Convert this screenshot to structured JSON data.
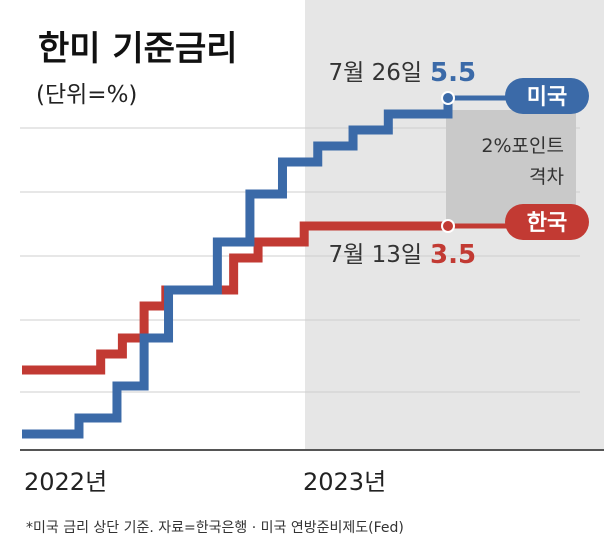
{
  "chart_data": {
    "type": "line",
    "title": "한미 기준금리",
    "subtitle": "(단위=%)",
    "note": "*미국 금리 상단 기준. 자료=한국은행 · 미국 연방준비제도(Fed)",
    "x_labels": [
      "2022년",
      "2023년"
    ],
    "ylim": [
      0,
      6
    ],
    "xlim": [
      2022.0,
      2023.8
    ],
    "series": [
      {
        "name": "미국",
        "color": "#3b6aa8",
        "x": [
          2022.0,
          2022.21,
          2022.35,
          2022.45,
          2022.54,
          2022.72,
          2022.84,
          2022.96,
          2023.09,
          2023.22,
          2023.35,
          2023.57
        ],
        "y": [
          0.25,
          0.5,
          1.0,
          1.75,
          2.5,
          3.25,
          4.0,
          4.5,
          4.75,
          5.0,
          5.25,
          5.5
        ]
      },
      {
        "name": "한국",
        "color": "#c23a33",
        "x": [
          2022.0,
          2022.04,
          2022.29,
          2022.37,
          2022.45,
          2022.53,
          2022.62,
          2022.78,
          2022.87,
          2023.04,
          2023.57
        ],
        "y": [
          1.25,
          1.25,
          1.5,
          1.75,
          2.25,
          2.5,
          2.5,
          3.0,
          3.25,
          3.5,
          3.5
        ]
      }
    ],
    "annotations": {
      "us_date": "7월 26일",
      "us_value": "5.5",
      "kr_date": "7월 13일",
      "kr_value": "3.5",
      "gap_line1": "2%포인트",
      "gap_line2": "격차"
    },
    "colors": {
      "us": "#3b6aa8",
      "kr": "#c23a33",
      "shade": "#e6e6e6",
      "gap_box": "#c9c9c9"
    }
  }
}
